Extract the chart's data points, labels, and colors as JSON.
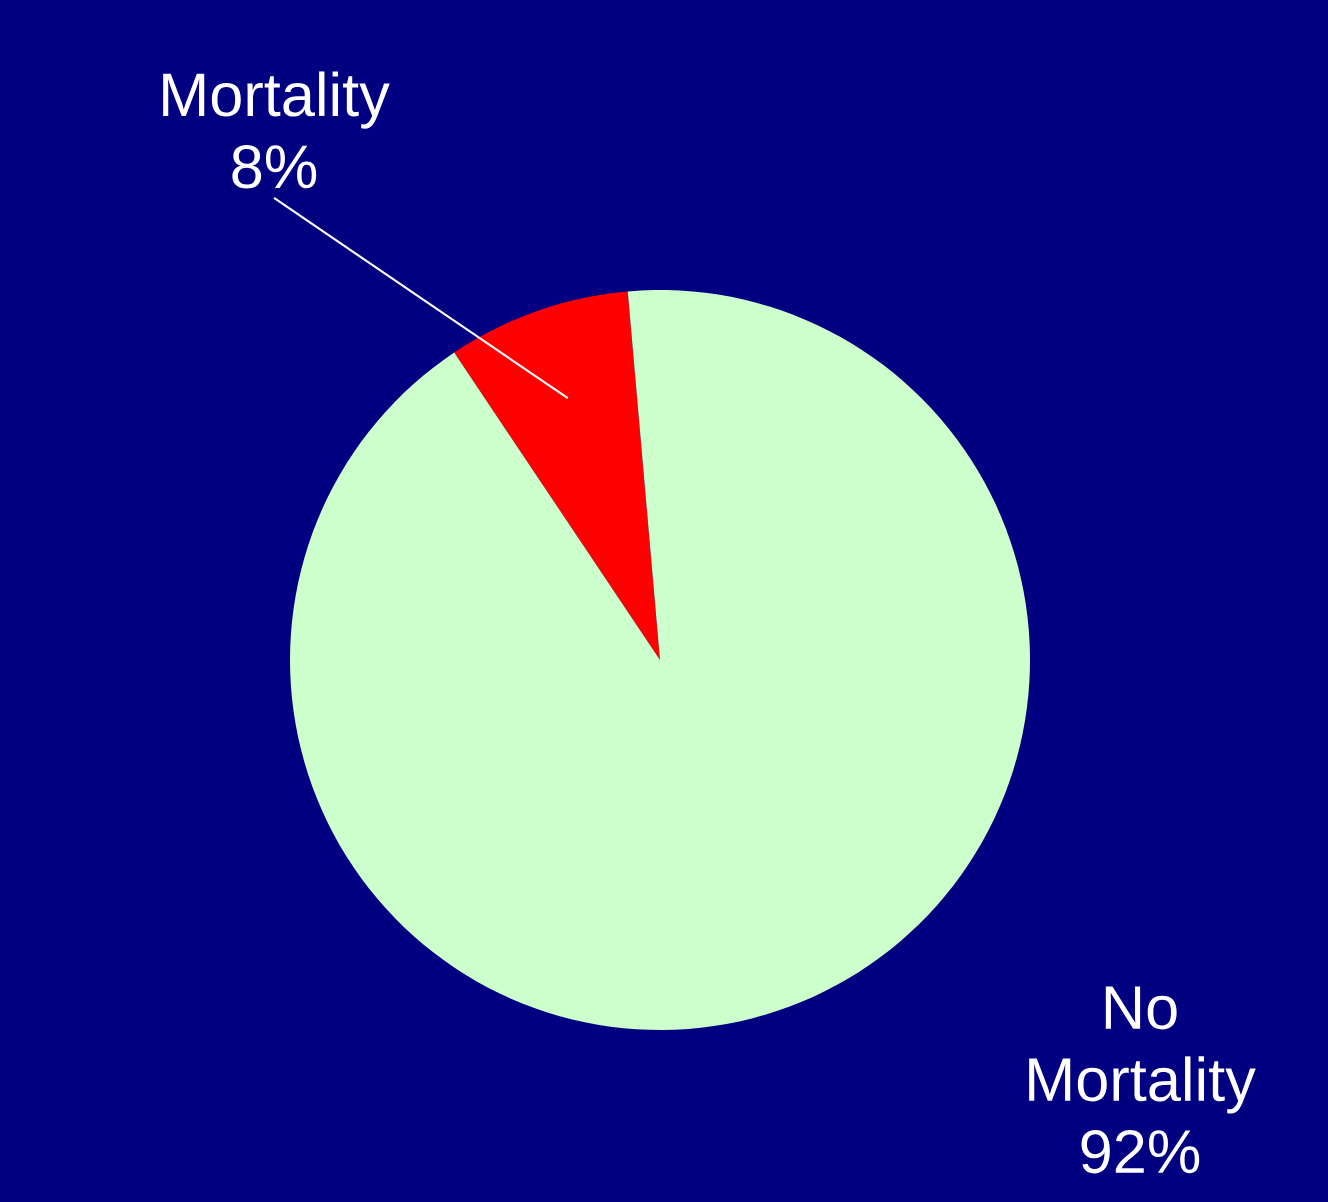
{
  "chart_data": {
    "type": "pie",
    "categories": [
      "Mortality",
      "No Mortality"
    ],
    "values": [
      8,
      92
    ],
    "colors": [
      "#ff0000",
      "#ccffcc"
    ],
    "value_labels": [
      "8%",
      "92%"
    ]
  }
}
